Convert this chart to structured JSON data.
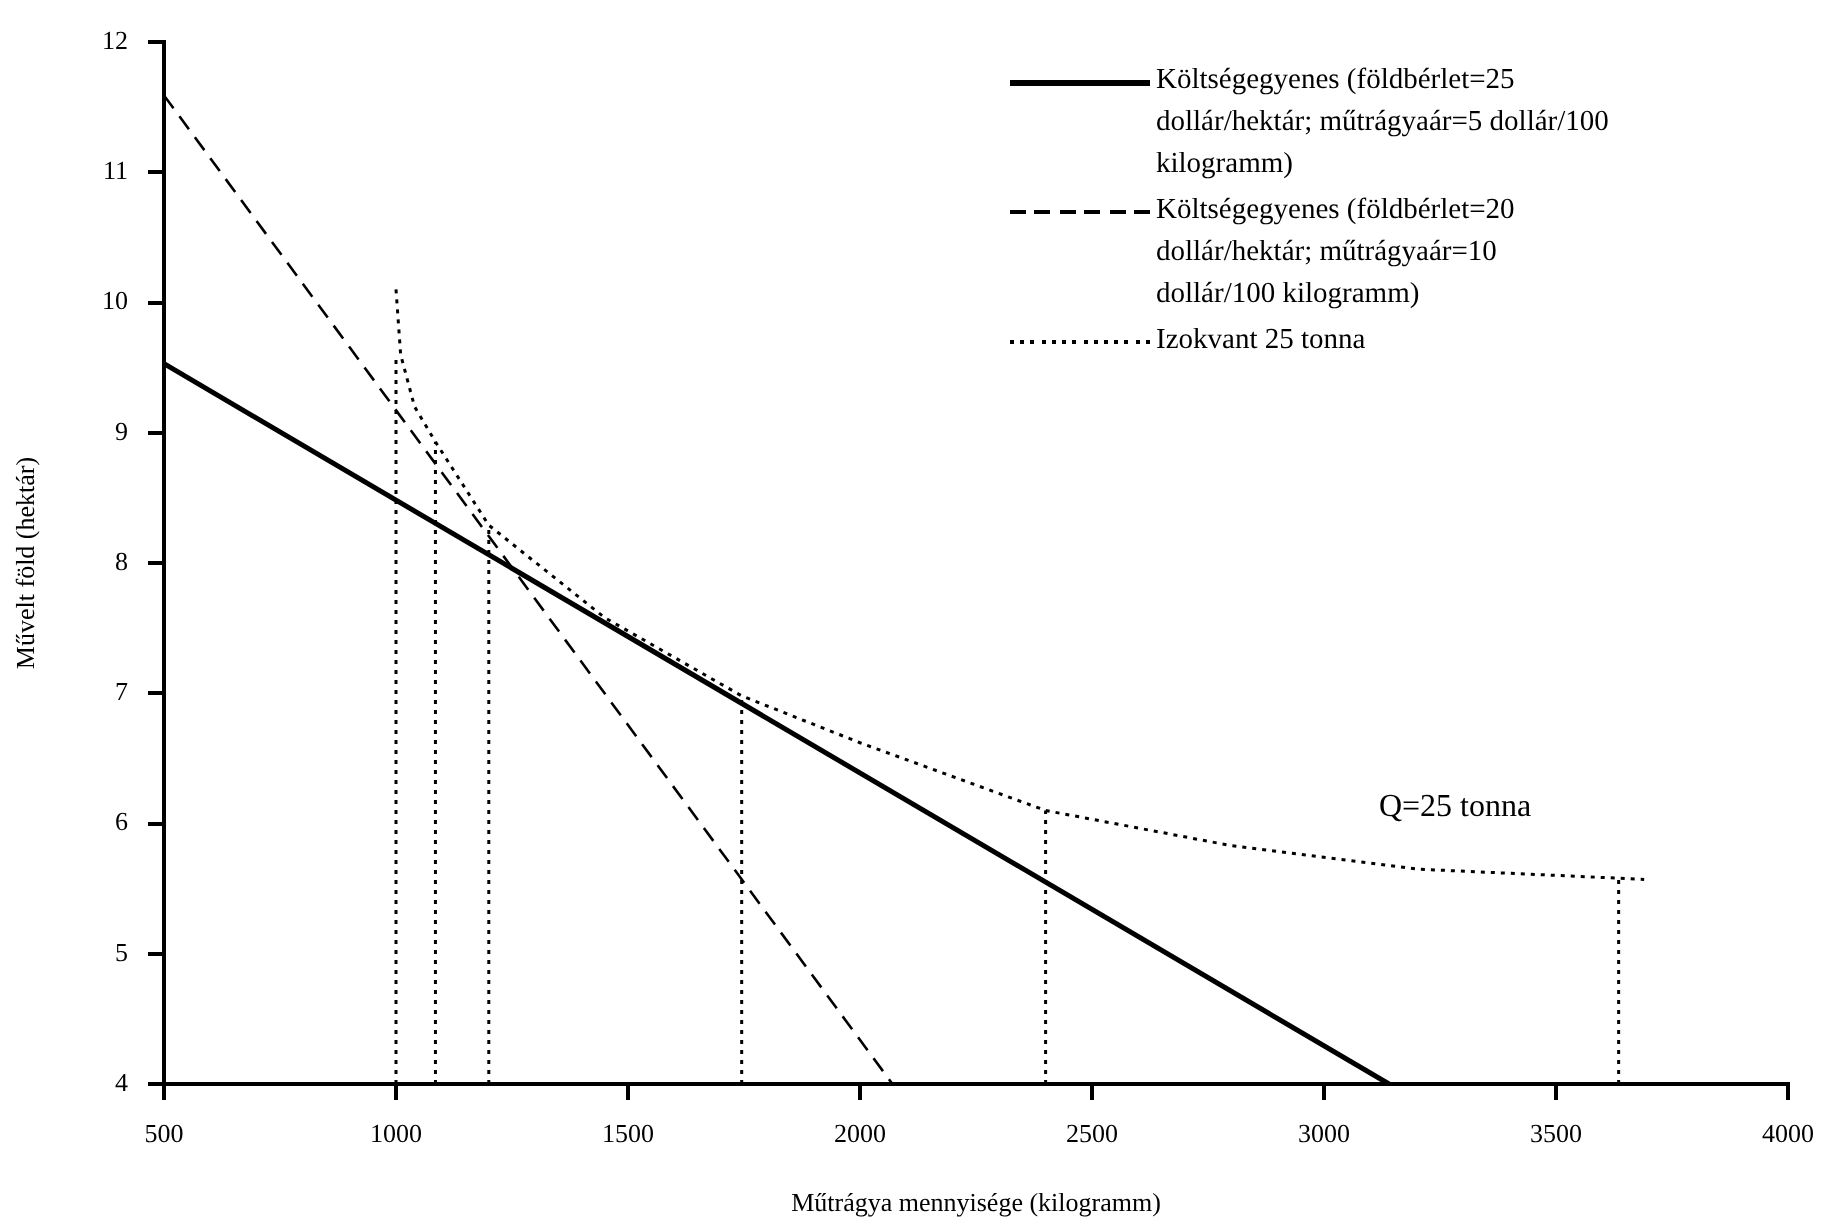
{
  "chart_data": {
    "type": "line",
    "xlabel": "Műtrágya mennyisége (kilogramm)",
    "ylabel": "Művelt föld (hektár)",
    "xlim": [
      500,
      4000
    ],
    "xticks": [
      500,
      1000,
      1500,
      2000,
      2500,
      3000,
      3500,
      4000
    ],
    "ylim": [
      4,
      12
    ],
    "yticks": [
      4,
      5,
      6,
      7,
      8,
      9,
      10,
      11,
      12
    ],
    "grid": false,
    "legend": "top right",
    "marker": "none",
    "series": [
      {
        "name": "Költségegyenes (földbérlet=25 dollár/hektár; műtrágyaár=5 dollár/100 kilogramm)",
        "color": "#000000",
        "line_style": "solid",
        "x": [
          500,
          3140
        ],
        "values": [
          9.53,
          4
        ]
      },
      {
        "name": "Költségegyenes (földbérlet=20 dollár/hektár; műtrágyaár=10 dollár/100 kilogramm)",
        "color": "#000000",
        "line_style": "dashed",
        "x": [
          500,
          2070
        ],
        "values": [
          11.59,
          4
        ]
      },
      {
        "name": "Izokvant 25 tonna",
        "color": "#000000",
        "line_style": "dotted",
        "x": [
          1000,
          1010,
          1040,
          1085,
          1200,
          1450,
          1745,
          2000,
          2400,
          2800,
          3200,
          3635,
          3690
        ],
        "values": [
          10.1,
          9.6,
          9.2,
          8.93,
          8.29,
          7.58,
          6.98,
          6.62,
          6.1,
          5.83,
          5.65,
          5.58,
          5.57
        ]
      },
      {
        "color": "#000000",
        "line_style": "dotted",
        "x": [
          1000,
          1000
        ],
        "values": [
          4,
          9.6
        ]
      },
      {
        "color": "#000000",
        "line_style": "dotted",
        "x": [
          1085,
          1085
        ],
        "values": [
          4,
          8.93
        ]
      },
      {
        "color": "#000000",
        "line_style": "dotted",
        "x": [
          1200,
          1200
        ],
        "values": [
          4,
          8.29
        ]
      },
      {
        "color": "#000000",
        "line_style": "dotted",
        "x": [
          1745,
          1745
        ],
        "values": [
          4,
          6.98
        ]
      },
      {
        "color": "#000000",
        "line_style": "dotted",
        "x": [
          2400,
          2400
        ],
        "values": [
          4,
          6.1
        ]
      },
      {
        "color": "#000000",
        "line_style": "dotted",
        "x": [
          3635,
          3635
        ],
        "values": [
          4,
          5.58
        ]
      }
    ],
    "annotations": [
      "Q=25 tonna"
    ]
  }
}
